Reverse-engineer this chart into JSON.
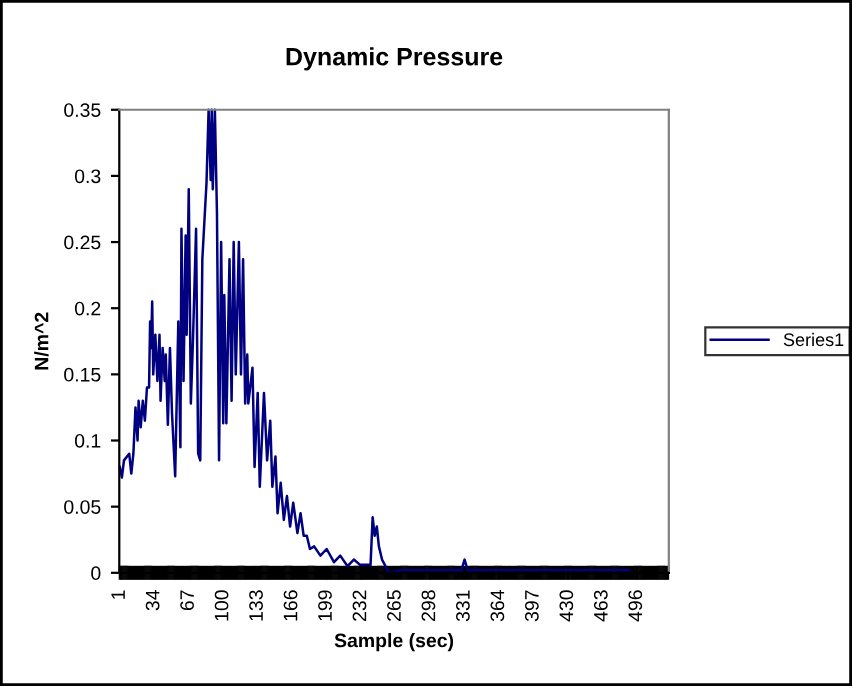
{
  "chart_data": {
    "type": "line",
    "title": "Dynamic Pressure",
    "xlabel": "Sample (sec)",
    "ylabel": "N/m^2",
    "xlim": [
      0.5,
      526.5
    ],
    "xticks": [
      1,
      34,
      67,
      100,
      133,
      166,
      199,
      232,
      265,
      298,
      331,
      364,
      397,
      430,
      463,
      496
    ],
    "ylim": [
      0,
      0.35
    ],
    "yticks": [
      0,
      0.05,
      0.1,
      0.15,
      0.2,
      0.25,
      0.3,
      0.35
    ],
    "grid": false,
    "legend": "right",
    "marker": "none",
    "line_style": "solid",
    "series": [
      {
        "name": "Series1",
        "color": "#000080",
        "x": [
          1,
          3,
          5,
          10,
          12,
          14,
          16,
          18,
          19,
          21,
          23,
          25,
          27,
          29,
          30,
          31,
          32,
          33,
          35,
          37,
          39,
          40,
          42,
          44,
          45,
          47,
          49,
          51,
          54,
          57,
          59,
          60,
          62,
          64,
          65,
          67,
          69,
          71,
          74,
          76,
          78,
          80,
          84,
          86,
          88,
          89,
          90,
          92,
          94,
          96,
          98,
          100,
          101,
          103,
          106,
          108,
          110,
          112,
          115,
          117,
          119,
          121,
          123,
          124,
          128,
          130,
          133,
          135,
          139,
          142,
          145,
          147,
          150,
          152,
          155,
          158,
          161,
          164,
          167,
          171,
          174,
          177,
          180,
          183,
          187,
          193,
          199,
          206,
          212,
          219,
          225,
          231,
          241,
          243,
          245,
          247,
          249,
          252,
          256,
          258,
          270,
          300,
          328,
          331,
          334,
          400,
          488,
          490
        ],
        "values": [
          0.08,
          0.072,
          0.085,
          0.09,
          0.075,
          0.09,
          0.125,
          0.1,
          0.13,
          0.11,
          0.13,
          0.115,
          0.14,
          0.14,
          0.19,
          0.17,
          0.205,
          0.15,
          0.18,
          0.145,
          0.18,
          0.13,
          0.17,
          0.145,
          0.165,
          0.112,
          0.17,
          0.12,
          0.073,
          0.19,
          0.095,
          0.26,
          0.145,
          0.255,
          0.18,
          0.29,
          0.128,
          0.175,
          0.26,
          0.09,
          0.085,
          0.237,
          0.295,
          0.35,
          0.297,
          0.35,
          0.29,
          0.35,
          0.272,
          0.085,
          0.25,
          0.113,
          0.21,
          0.113,
          0.237,
          0.13,
          0.25,
          0.15,
          0.25,
          0.15,
          0.237,
          0.128,
          0.165,
          0.128,
          0.155,
          0.08,
          0.136,
          0.065,
          0.136,
          0.085,
          0.115,
          0.065,
          0.088,
          0.045,
          0.068,
          0.04,
          0.058,
          0.035,
          0.053,
          0.03,
          0.045,
          0.028,
          0.028,
          0.018,
          0.02,
          0.013,
          0.018,
          0.008,
          0.013,
          0.005,
          0.01,
          0.006,
          0.006,
          0.042,
          0.028,
          0.035,
          0.02,
          0.01,
          0.004,
          0,
          0.002,
          0.002,
          0.002,
          0.01,
          0.002,
          0.002,
          0.002,
          0
        ]
      }
    ]
  }
}
